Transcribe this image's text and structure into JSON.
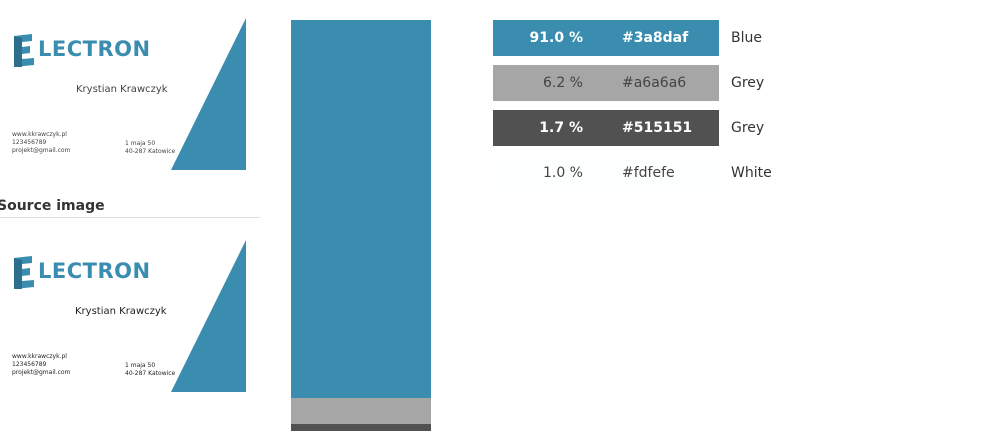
{
  "cards": {
    "preview": {
      "logo_text": "LECTRON",
      "name": "Krystian Krawczyk",
      "contact": [
        "www.kkrawczyk.pl",
        "123456789",
        "projekt@gmail.com"
      ],
      "address": [
        "1 maja 50",
        "40-287 Katowice"
      ]
    },
    "source": {
      "logo_text": "LECTRON",
      "name": "Krystian Krawczyk",
      "contact": [
        "www.kkrawczyk.pl",
        "123456789",
        "projekt@gmail.com"
      ],
      "address": [
        "1 maja 50",
        "40-287 Katowice"
      ]
    }
  },
  "source_label": "Source image",
  "palette": [
    {
      "percent": "91.0 %",
      "hex": "#3a8daf",
      "name": "Blue",
      "color": "#3a8daf",
      "share": 0.91,
      "text_style": "light"
    },
    {
      "percent": "6.2 %",
      "hex": "#a6a6a6",
      "name": "Grey",
      "color": "#a6a6a6",
      "share": 0.062,
      "text_style": "dark"
    },
    {
      "percent": "1.7 %",
      "hex": "#515151",
      "name": "Grey",
      "color": "#515151",
      "share": 0.017,
      "text_style": "light"
    },
    {
      "percent": "1.0 %",
      "hex": "#fdfefe",
      "name": "White",
      "color": "#fdfefe",
      "share": 0.01,
      "text_style": "dark"
    }
  ],
  "colors": {
    "brand": "#3a8daf"
  }
}
